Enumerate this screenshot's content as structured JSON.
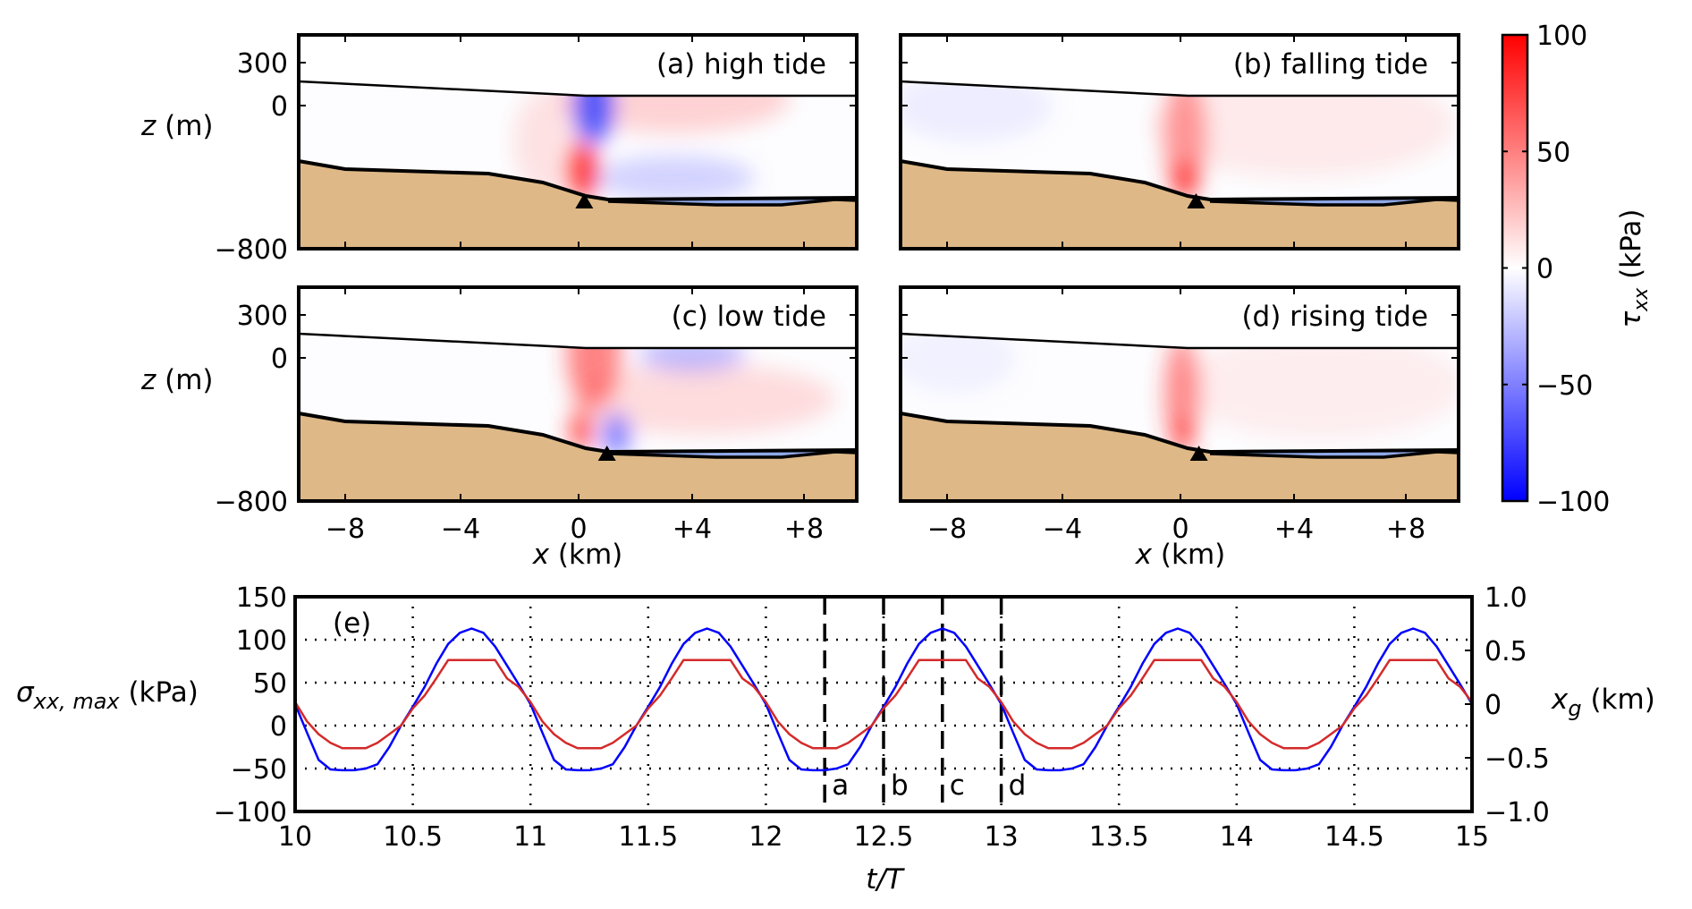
{
  "figure": {
    "panel_axes": {
      "z_label": "z",
      "z_unit": " (m)",
      "z_ticks": [
        "300",
        "0",
        "−800"
      ],
      "x_label": "x",
      "x_unit": " (km)",
      "x_ticks": [
        "−8",
        "−4",
        "0",
        "+4",
        "+8"
      ]
    },
    "panels": [
      {
        "id": "a",
        "title": "(a) high tide",
        "grounding_line_km": 0.2
      },
      {
        "id": "b",
        "title": "(b) falling tide",
        "grounding_line_km": 0.55
      },
      {
        "id": "c",
        "title": "(c) low tide",
        "grounding_line_km": 1.0
      },
      {
        "id": "d",
        "title": "(d) rising tide",
        "grounding_line_km": 0.65
      }
    ],
    "colorbar": {
      "symbol": "τ",
      "subscript": "xx",
      "unit": " (kPa)",
      "ticks": [
        "100",
        "50",
        "0",
        "−50",
        "−100"
      ],
      "range": [
        -100,
        100
      ],
      "colors": {
        "max": "#ff0000",
        "mid": "#ffffff",
        "min": "#0000ff"
      }
    },
    "colors": {
      "sediment": "#deb887",
      "water": "#8fa8e8"
    }
  },
  "chart_data": {
    "type": "line",
    "title": "(e)",
    "xlabel": "t/T",
    "ylabel_left": {
      "symbol": "σ",
      "subscript": "xx, max",
      "unit": " (kPa)"
    },
    "ylabel_right": {
      "symbol": "x",
      "subscript": "g",
      "unit": " (km)"
    },
    "xlim": [
      10,
      15
    ],
    "ylim_left": [
      -100,
      150
    ],
    "ylim_right": [
      -1.0,
      1.0
    ],
    "xticks": [
      "10",
      "10.5",
      "11",
      "11.5",
      "12",
      "12.5",
      "13",
      "13.5",
      "14",
      "14.5",
      "15"
    ],
    "yticks_left": [
      "150",
      "100",
      "50",
      "0",
      "−50",
      "−100"
    ],
    "yticks_right": [
      "1.0",
      "0.5",
      "0",
      "−0.5",
      "−1.0"
    ],
    "grid": "dotted",
    "period": 1,
    "cycle_offsets": [
      0,
      0.05,
      0.1,
      0.15,
      0.2,
      0.25,
      0.3,
      0.35,
      0.4,
      0.45,
      0.5,
      0.55,
      0.6,
      0.65,
      0.7,
      0.75,
      0.8,
      0.85,
      0.9,
      0.95,
      1.0
    ],
    "series": [
      {
        "name": "sigma_xx_max (kPa)",
        "axis": "left",
        "color": "#0000ff",
        "cycle_values": [
          25,
          -8,
          -40,
          -51,
          -52,
          -52,
          -50,
          -45,
          -25,
          0,
          22,
          45,
          72,
          95,
          108,
          113,
          108,
          92,
          70,
          48,
          25
        ]
      },
      {
        "name": "x_g (km)",
        "axis": "right",
        "color": "#d42a2a",
        "cycle_values": [
          0.02,
          -0.16,
          -0.28,
          -0.36,
          -0.41,
          -0.41,
          -0.41,
          -0.36,
          -0.28,
          -0.2,
          -0.04,
          0.08,
          0.24,
          0.41,
          0.41,
          0.41,
          0.41,
          0.41,
          0.24,
          0.16,
          0.02
        ]
      }
    ],
    "markers": [
      {
        "t": 12.25,
        "label": "a"
      },
      {
        "t": 12.5,
        "label": "b"
      },
      {
        "t": 12.75,
        "label": "c"
      },
      {
        "t": 13.0,
        "label": "d"
      }
    ]
  }
}
